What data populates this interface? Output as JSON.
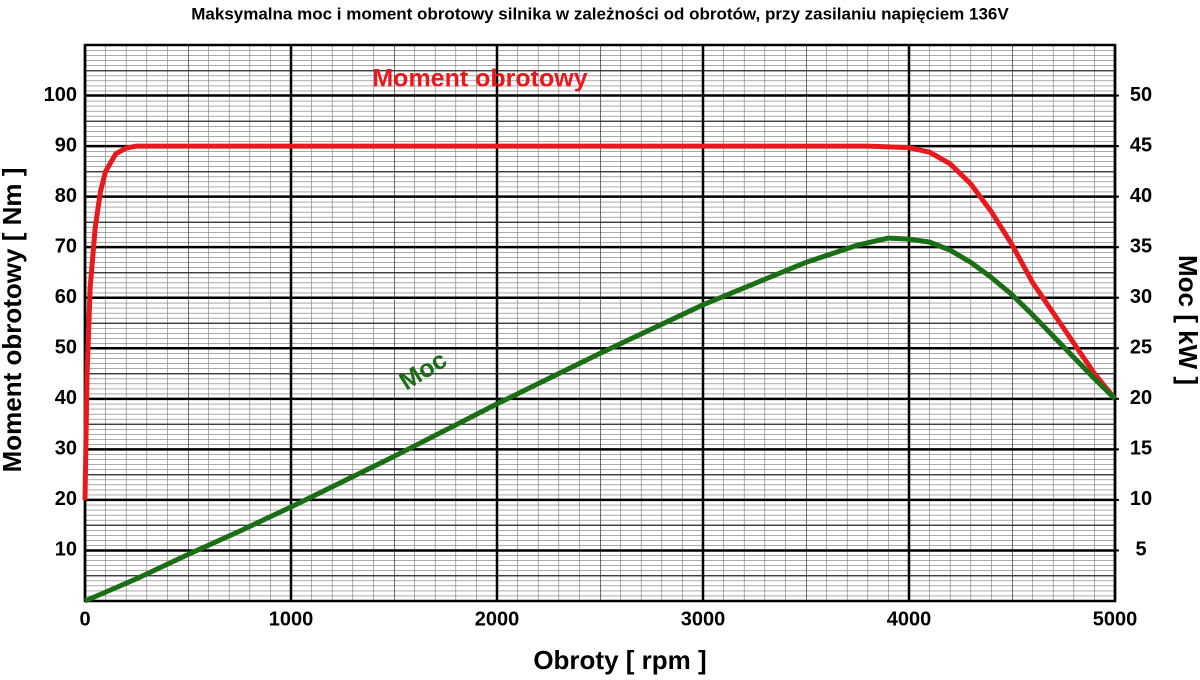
{
  "chart_data": {
    "type": "line",
    "title": "Maksymalna moc i moment obrotowy silnika w zależności od obrotów, przy zasilaniu napięciem 136V",
    "x_label": "Obroty [ rpm ]",
    "y_label": "Moment obrotowy [ Nm ]",
    "y2_label": "Moc [ kW ]",
    "xlim": [
      0,
      5000
    ],
    "xticks": [
      0,
      1000,
      2000,
      3000,
      4000,
      5000
    ],
    "ylim": [
      0,
      110
    ],
    "yticks": [
      10,
      20,
      30,
      40,
      50,
      60,
      70,
      80,
      90,
      100
    ],
    "y2lim": [
      0,
      55
    ],
    "y2ticks": [
      5,
      10,
      15,
      20,
      25,
      30,
      35,
      40,
      45,
      50
    ],
    "grid": true,
    "series": [
      {
        "name": "Moment obrotowy",
        "color": "#e8191c",
        "x": [
          0,
          10,
          25,
          50,
          75,
          100,
          150,
          200,
          250,
          300,
          500,
          1000,
          2000,
          3000,
          3500,
          3800,
          4000,
          4100,
          4200,
          4300,
          4400,
          4500,
          4600,
          4700,
          4800,
          4900,
          5000
        ],
        "values": [
          20,
          45,
          62,
          74,
          81,
          85,
          88.5,
          89.6,
          90,
          90,
          90,
          90,
          90,
          90,
          90,
          90,
          89.7,
          88.8,
          86.5,
          82.5,
          77,
          70.5,
          63,
          57,
          51,
          45,
          40
        ]
      },
      {
        "name": "Moc",
        "color": "#1a6e14",
        "axis": "y2",
        "x": [
          0,
          250,
          500,
          750,
          1000,
          1500,
          2000,
          2500,
          3000,
          3500,
          3750,
          3900,
          4000,
          4100,
          4200,
          4300,
          4400,
          4500,
          4600,
          4700,
          4800,
          4900,
          5000
        ],
        "values": [
          0,
          2.2,
          4.6,
          6.9,
          9.3,
          14.3,
          19.5,
          24.5,
          29.3,
          33.5,
          35.2,
          35.9,
          35.8,
          35.5,
          34.7,
          33.5,
          32,
          30.3,
          28.3,
          26.2,
          24.1,
          22,
          20
        ]
      }
    ]
  }
}
